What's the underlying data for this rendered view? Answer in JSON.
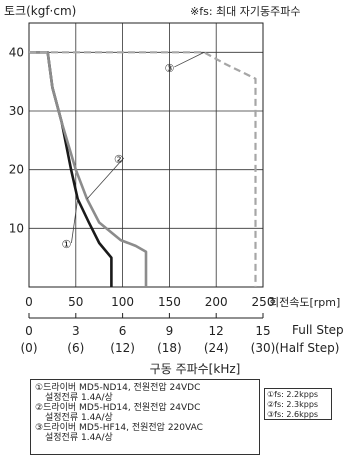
{
  "chart_data": {
    "type": "line",
    "title": "",
    "ylabel": "토크(kgf·cm)",
    "note": "※fs: 최대 자기동주파수",
    "x_axis": {
      "label": "회전속도[rpm]",
      "range": [
        0,
        250
      ],
      "ticks": [
        "0",
        "50",
        "100",
        "150",
        "200",
        "250"
      ]
    },
    "freq_axis": {
      "label": "구동 주파수[kHz]",
      "full_step_label": "Full Step",
      "half_step_label": "(Half Step)",
      "full_ticks": [
        "0",
        "3",
        "6",
        "9",
        "12",
        "15"
      ],
      "half_ticks": [
        "(0)",
        "(6)",
        "(12)",
        "(18)",
        "(24)",
        "(30)"
      ]
    },
    "y_axis": {
      "range": [
        0,
        45
      ],
      "ticks": [
        "10",
        "20",
        "30",
        "40"
      ]
    },
    "grid": true,
    "series": [
      {
        "name": "①",
        "color": "#1a1a1a",
        "style": "solid",
        "points": [
          [
            0,
            40
          ],
          [
            20,
            40
          ],
          [
            25,
            34
          ],
          [
            35,
            28
          ],
          [
            45,
            20
          ],
          [
            52,
            15
          ],
          [
            64,
            11
          ],
          [
            75,
            7.5
          ],
          [
            88,
            5
          ],
          [
            88,
            0
          ]
        ]
      },
      {
        "name": "②",
        "color": "#8c8c8c",
        "style": "solid",
        "points": [
          [
            0,
            40
          ],
          [
            20,
            40
          ],
          [
            25,
            34
          ],
          [
            35,
            28
          ],
          [
            50,
            20
          ],
          [
            62,
            15
          ],
          [
            75,
            11
          ],
          [
            98,
            8
          ],
          [
            114,
            7
          ],
          [
            125,
            6
          ],
          [
            125,
            0
          ]
        ]
      },
      {
        "name": "③",
        "color": "#a6a6a6",
        "style": "dashed",
        "points": [
          [
            0,
            40
          ],
          [
            187,
            40
          ],
          [
            210,
            38
          ],
          [
            242,
            35.5
          ],
          [
            242,
            0
          ]
        ]
      }
    ],
    "series_labels": [
      {
        "text": "①",
        "x": 40,
        "y": 7
      },
      {
        "text": "②",
        "x": 96,
        "y": 21.5
      },
      {
        "text": "③",
        "x": 150,
        "y": 37
      }
    ],
    "legend": {
      "drivers": [
        "①드라이버 MD5-ND14, 전원전압 24VDC",
        "설정전류 1.4A/상",
        "②드라이버 MD5-HD14, 전원전압 24VDC",
        "설정전류 1.4A/상",
        "③드라이버 MD5-HF14, 전원전압 220VAC",
        "설정전류 1.4A/상"
      ],
      "fs": [
        "①fs: 2.2kpps",
        "②fs: 2.3kpps",
        "③fs: 2.6kpps"
      ]
    }
  }
}
